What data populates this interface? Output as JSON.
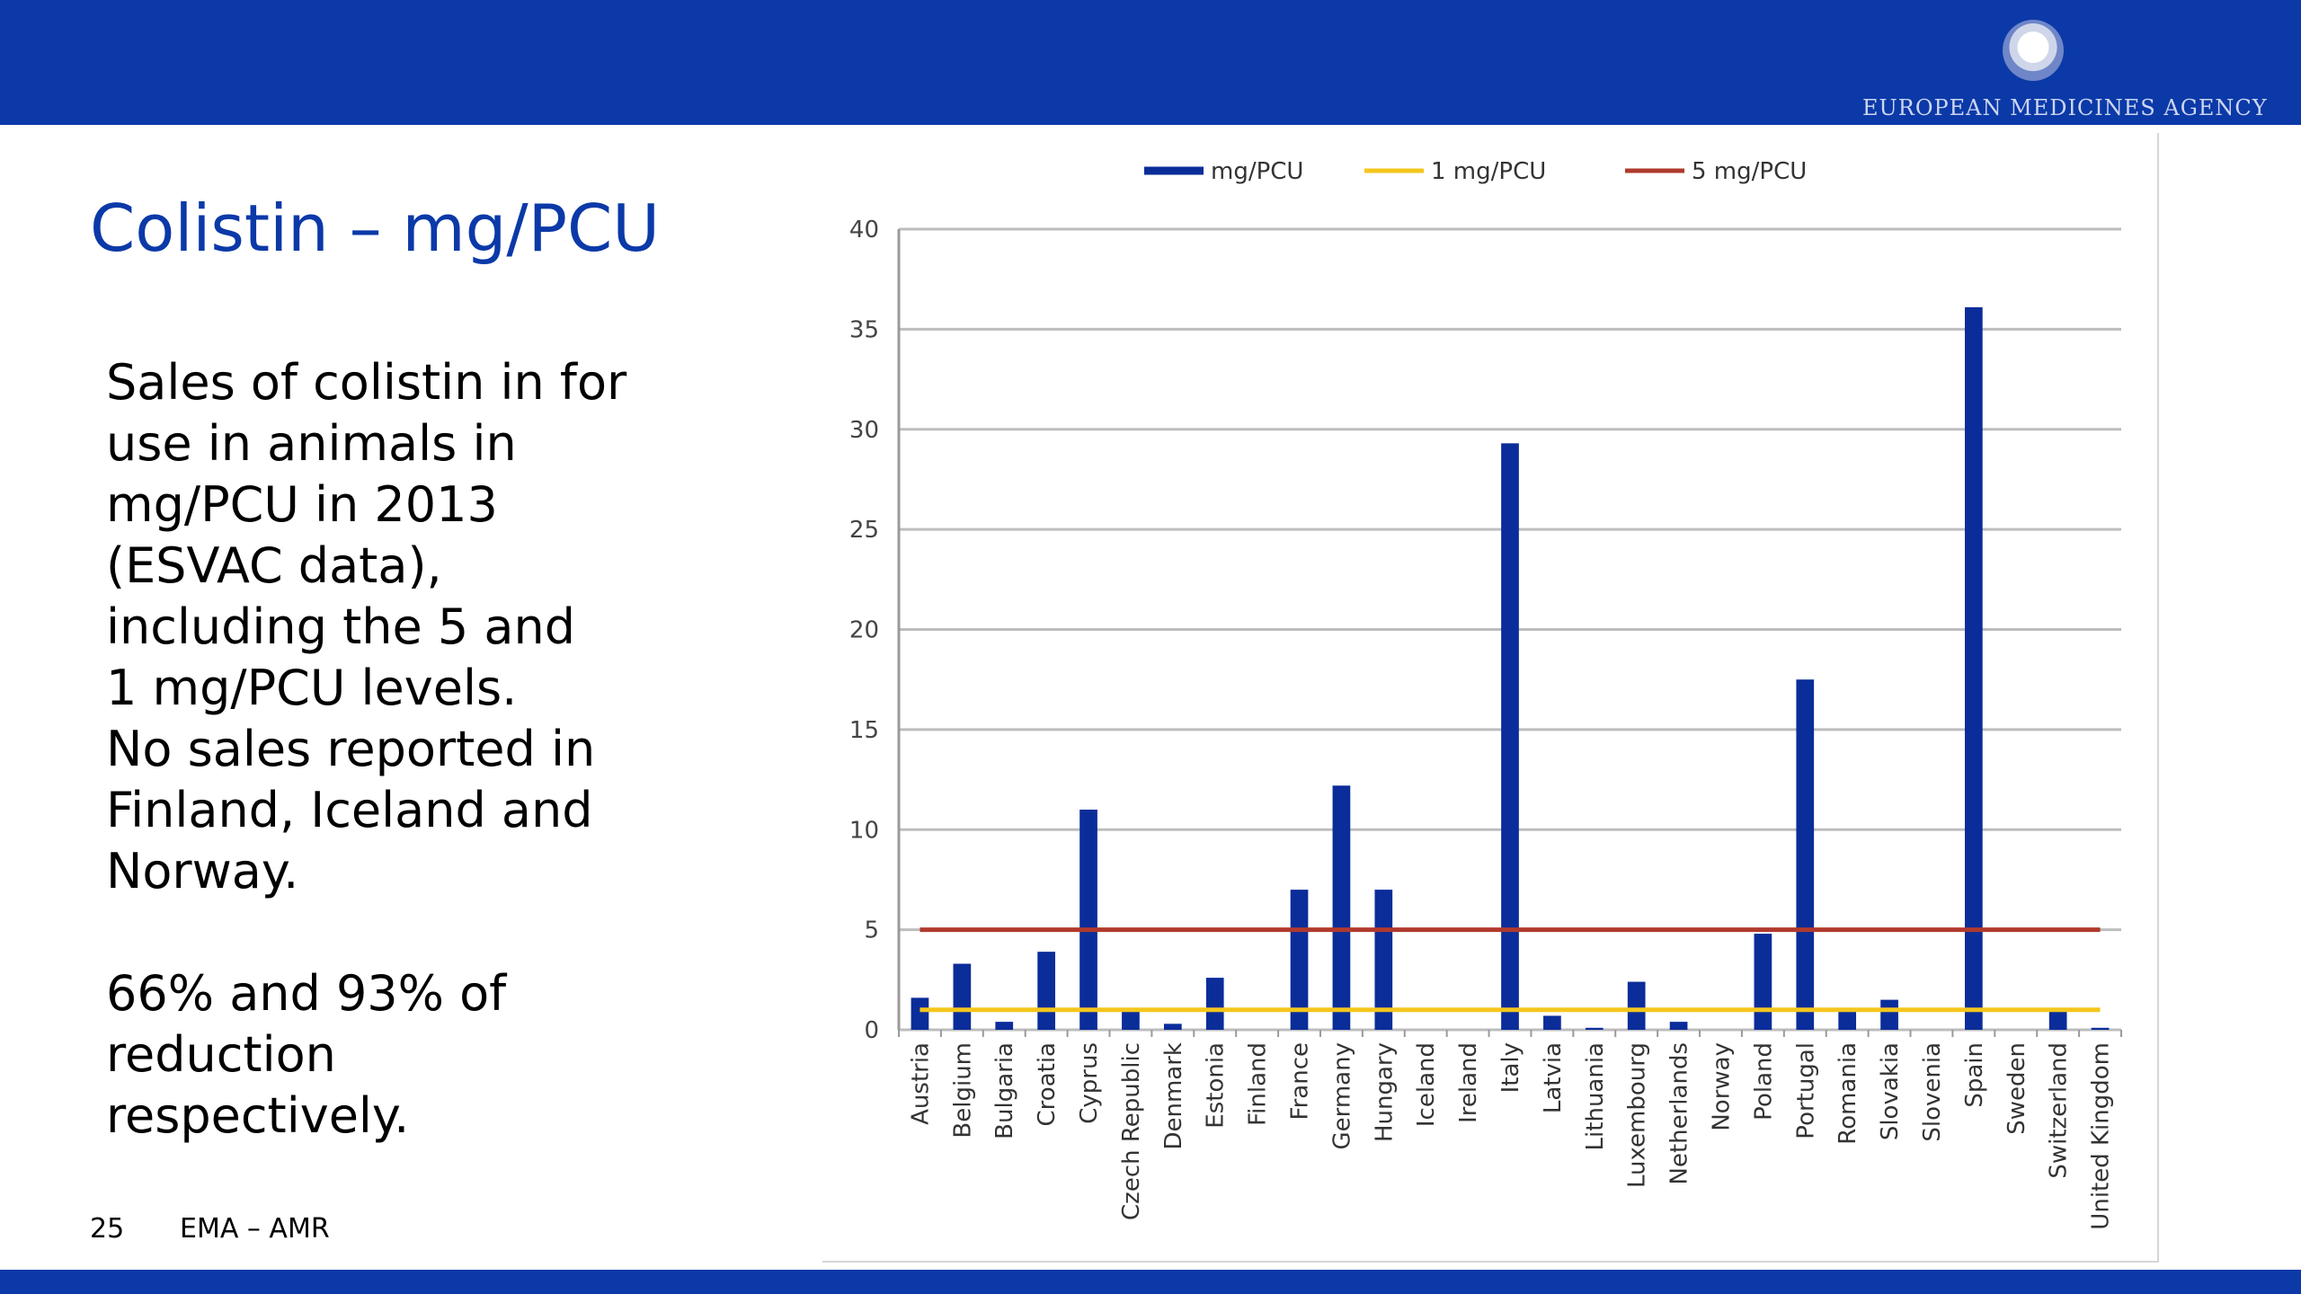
{
  "slide": {
    "title": "Colistin – mg/PCU",
    "paragraphs": [
      [
        "Sales of colistin in for",
        "use in animals in",
        "mg/PCU in 2013",
        "(ESVAC data),",
        "including the 5 and",
        "1 mg/PCU levels.",
        "No sales reported in",
        "Finland, Iceland and",
        "Norway."
      ],
      [
        "66% and 93% of",
        "reduction",
        "respectively."
      ]
    ],
    "footer_page": "25",
    "footer_text": "EMA – AMR",
    "logo_text": "EUROPEAN MEDICINES AGENCY",
    "colors": {
      "brand_blue": "#0b39a8"
    }
  },
  "chart_data": {
    "type": "bar",
    "title": "",
    "xlabel": "",
    "ylabel": "",
    "ylim": [
      0,
      40
    ],
    "yticks": [
      0,
      5,
      10,
      15,
      20,
      25,
      30,
      35,
      40
    ],
    "grid": true,
    "legend_position": "top",
    "categories": [
      "Austria",
      "Belgium",
      "Bulgaria",
      "Croatia",
      "Cyprus",
      "Czech Republic",
      "Denmark",
      "Estonia",
      "Finland",
      "France",
      "Germany",
      "Hungary",
      "Iceland",
      "Ireland",
      "Italy",
      "Latvia",
      "Lithuania",
      "Luxembourg",
      "Netherlands",
      "Norway",
      "Poland",
      "Portugal",
      "Romania",
      "Slovakia",
      "Slovenia",
      "Spain",
      "Sweden",
      "Switzerland",
      "United Kingdom"
    ],
    "series": [
      {
        "name": "mg/PCU",
        "kind": "bar",
        "color": "#0b2d9a",
        "values": [
          1.6,
          3.3,
          0.4,
          3.9,
          11.0,
          0.9,
          0.3,
          2.6,
          0,
          7.0,
          12.2,
          7.0,
          0,
          0,
          29.3,
          0.7,
          0.1,
          2.4,
          0.4,
          0,
          4.8,
          17.5,
          0.9,
          1.5,
          0,
          36.1,
          0,
          0.9,
          0.1
        ]
      },
      {
        "name": "1 mg/PCU",
        "kind": "line",
        "color": "#f4c61d",
        "value": 1
      },
      {
        "name": "5 mg/PCU",
        "kind": "line",
        "color": "#b03a2e",
        "value": 5
      }
    ]
  }
}
